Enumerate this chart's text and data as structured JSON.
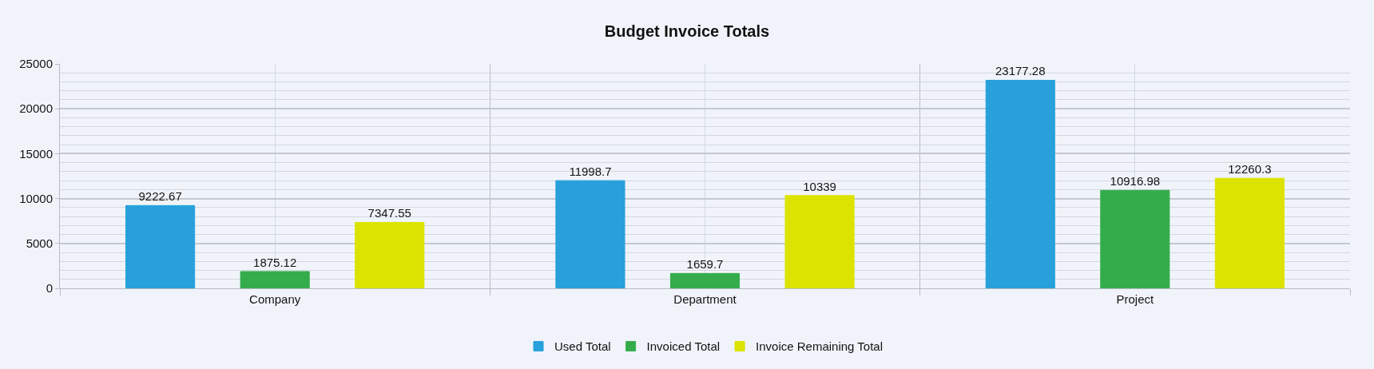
{
  "chart_data": {
    "type": "bar",
    "title": "Budget Invoice Totals",
    "categories": [
      "Company",
      "Department",
      "Project"
    ],
    "series": [
      {
        "name": "Used Total",
        "color": "#27a0db",
        "values": [
          9222.67,
          11998.7,
          23177.28
        ]
      },
      {
        "name": "Invoiced Total",
        "color": "#35ac4c",
        "values": [
          1875.12,
          1659.7,
          10916.98
        ]
      },
      {
        "name": "Invoice Remaining Total",
        "color": "#dce300",
        "values": [
          7347.55,
          10339,
          12260.3
        ]
      }
    ],
    "ylim": [
      0,
      25000
    ],
    "yticks": [
      0,
      5000,
      10000,
      15000,
      20000,
      25000
    ],
    "grid": true,
    "legend": "bottom",
    "data_labels": true
  }
}
